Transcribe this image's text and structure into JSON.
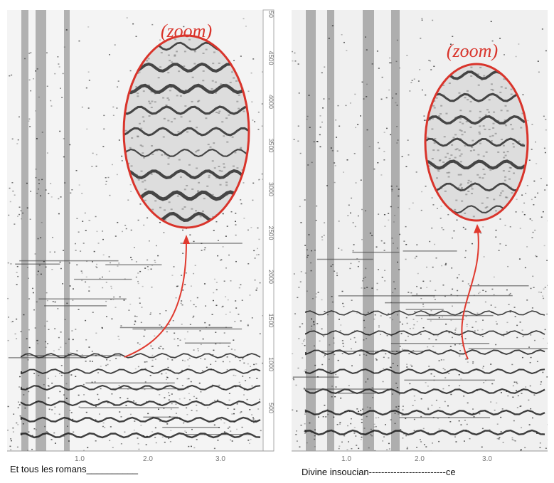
{
  "left": {
    "zoom_label": "(zoom)",
    "y_ticks": [
      "50",
      "4500",
      "4000",
      "3500",
      "3000",
      "2500",
      "2000",
      "1500",
      "1000",
      "500"
    ],
    "x_ticks": [
      "1.0",
      "2.0",
      "3.0"
    ],
    "caption": "Et tous les romans__________"
  },
  "right": {
    "zoom_label": "(zoom)",
    "x_ticks": [
      "1.0",
      "2.0",
      "3.0"
    ],
    "caption": "Divine insoucian-------------------------ce"
  }
}
